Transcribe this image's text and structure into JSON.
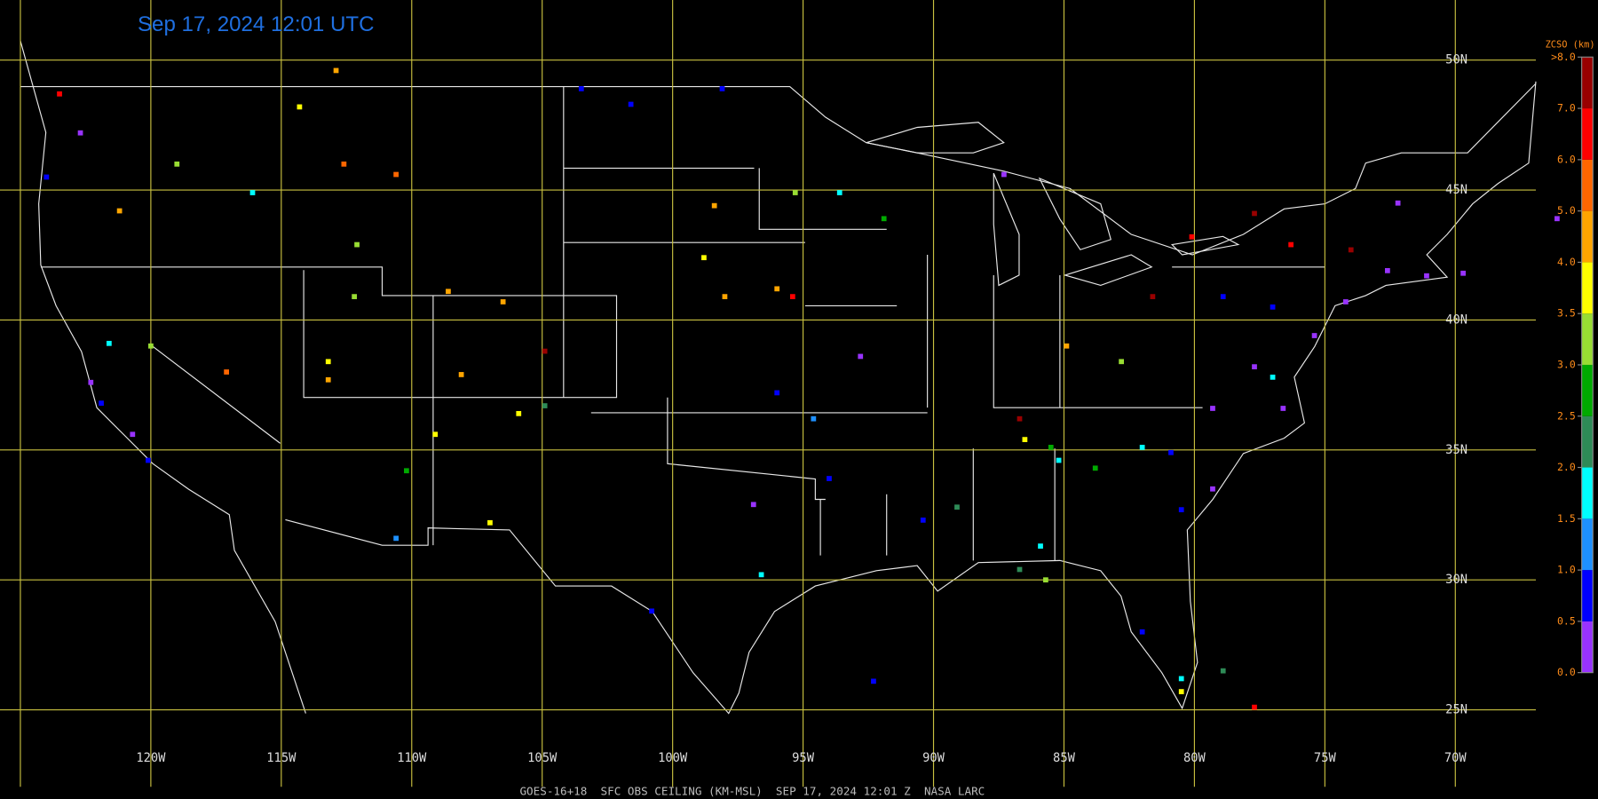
{
  "title": "Sep 17, 2024 12:01 UTC",
  "caption": "GOES-16+18  SFC OBS CEILING (KM-MSL)  SEP 17, 2024 12:01 Z  NASA LARC",
  "map": {
    "lon_lines": [
      {
        "value": -125,
        "label": null
      },
      {
        "value": -120,
        "label": "120W"
      },
      {
        "value": -115,
        "label": "115W"
      },
      {
        "value": -110,
        "label": "110W"
      },
      {
        "value": -105,
        "label": "105W"
      },
      {
        "value": -100,
        "label": "100W"
      },
      {
        "value": -95,
        "label": "95W"
      },
      {
        "value": -90,
        "label": "90W"
      },
      {
        "value": -85,
        "label": "85W"
      },
      {
        "value": -80,
        "label": "80W"
      },
      {
        "value": -75,
        "label": "75W"
      },
      {
        "value": -70,
        "label": "70W"
      }
    ],
    "lat_lines": [
      {
        "value": 50,
        "label": "50N"
      },
      {
        "value": 45,
        "label": "45N"
      },
      {
        "value": 40,
        "label": "40N"
      },
      {
        "value": 35,
        "label": "35N"
      },
      {
        "value": 30,
        "label": "30N"
      },
      {
        "value": 25,
        "label": "25N"
      }
    ]
  },
  "colorbar": {
    "title": "ZCSO (km)",
    "ticks": [
      {
        "value": 0,
        "label": "0.0"
      },
      {
        "value": 0.5,
        "label": "0.5"
      },
      {
        "value": 1,
        "label": "1.0"
      },
      {
        "value": 1.5,
        "label": "1.5"
      },
      {
        "value": 2,
        "label": "2.0"
      },
      {
        "value": 2.5,
        "label": "2.5"
      },
      {
        "value": 3,
        "label": "3.0"
      },
      {
        "value": 3.5,
        "label": "3.5"
      },
      {
        "value": 4,
        "label": "4.0"
      },
      {
        "value": 5,
        "label": "5.0"
      },
      {
        "value": 6,
        "label": "6.0"
      },
      {
        "value": 7,
        "label": "7.0"
      },
      {
        "value": 8,
        "label": ">8.0"
      }
    ],
    "colors": [
      "#9933ff",
      "#0000ff",
      "#1e90ff",
      "#00ffff",
      "#2e8b57",
      "#00aa00",
      "#99dd33",
      "#ffff00",
      "#ffa500",
      "#ff6600",
      "#ff0000",
      "#990000"
    ]
  },
  "stations": {
    "lon": [
      -112.9,
      -123.5,
      -122.7,
      -124.0,
      -121.2,
      -119.0,
      -116.1,
      -114.3,
      -112.6,
      -110.6,
      -112.1,
      -112.2,
      -117.1,
      -120.0,
      -121.6,
      -122.3,
      -121.9,
      -120.7,
      -120.1,
      -113.2,
      -113.2,
      -108.6,
      -106.5,
      -108.1,
      -104.9,
      -105.9,
      -104.9,
      -110.2,
      -110.6,
      -107.0,
      -109.1,
      -103.5,
      -101.6,
      -98.1,
      -98.4,
      -98.8,
      -98.0,
      -95.3,
      -93.6,
      -95.4,
      -96.0,
      -91.9,
      -92.8,
      -96.0,
      -94.6,
      -96.9,
      -94.0,
      -92.3,
      -96.6,
      -100.8,
      -90.4,
      -89.1,
      -86.7,
      -85.9,
      -85.7,
      -87.3,
      -84.9,
      -82.8,
      -81.6,
      -80.1,
      -77.7,
      -76.3,
      -86.7,
      -85.5,
      -86.5,
      -83.8,
      -78.9,
      -77.0,
      -77.7,
      -79.3,
      -76.6,
      -75.4,
      -74.2,
      -72.6,
      -71.1,
      -72.2,
      -74.0,
      -80.9,
      -80.5,
      -79.3,
      -82.0,
      -80.5,
      -80.5,
      -78.9,
      -77.7,
      -66.1,
      -69.7,
      -85.2,
      -82.0,
      -77.0
    ],
    "lat": [
      49.6,
      48.7,
      47.2,
      45.5,
      44.2,
      46.0,
      44.9,
      48.2,
      46.0,
      45.6,
      42.9,
      40.9,
      38.0,
      39.0,
      39.1,
      37.6,
      36.8,
      35.6,
      34.6,
      38.4,
      37.7,
      41.1,
      40.7,
      37.9,
      38.8,
      36.4,
      36.7,
      34.2,
      31.6,
      32.2,
      35.6,
      48.9,
      48.3,
      48.9,
      44.4,
      42.4,
      40.9,
      44.9,
      44.9,
      40.9,
      41.2,
      43.9,
      38.6,
      37.2,
      36.2,
      32.9,
      33.9,
      26.1,
      30.2,
      28.8,
      32.3,
      32.8,
      30.4,
      31.3,
      30.0,
      45.6,
      39.0,
      38.4,
      40.9,
      43.2,
      44.1,
      42.9,
      36.2,
      35.1,
      35.4,
      34.3,
      40.9,
      40.5,
      38.2,
      36.6,
      36.6,
      39.4,
      40.7,
      41.9,
      41.7,
      44.5,
      42.7,
      34.9,
      32.7,
      33.5,
      28.0,
      26.2,
      25.7,
      26.5,
      25.1,
      43.9,
      41.8,
      34.6,
      35.1,
      37.8
    ],
    "ceiling": [
      4.7,
      6.5,
      0.3,
      0.8,
      4.6,
      3.2,
      1.8,
      3.8,
      5.7,
      5.5,
      3.2,
      3.3,
      5.5,
      3.2,
      1.8,
      0.3,
      0.8,
      0.4,
      0.7,
      3.8,
      4.2,
      4.3,
      4.5,
      4.6,
      7.2,
      3.8,
      2.2,
      2.7,
      1.2,
      3.8,
      3.7,
      0.7,
      0.8,
      0.8,
      4.4,
      3.8,
      4.3,
      3.3,
      1.8,
      6.5,
      4.7,
      2.9,
      0.3,
      0.7,
      1.3,
      0.3,
      0.8,
      0.7,
      1.8,
      0.7,
      0.7,
      2.3,
      2.2,
      1.7,
      3.2,
      0.3,
      4.6,
      3.3,
      7.6,
      6.6,
      7.4,
      6.8,
      7.3,
      2.7,
      3.8,
      2.8,
      0.7,
      0.8,
      0.3,
      0.4,
      0.3,
      0.4,
      0.3,
      0.4,
      0.3,
      0.3,
      7.5,
      0.8,
      0.7,
      0.4,
      0.7,
      1.8,
      3.8,
      2.3,
      6.8,
      0.3,
      0.4,
      1.8,
      1.9,
      1.9
    ]
  }
}
